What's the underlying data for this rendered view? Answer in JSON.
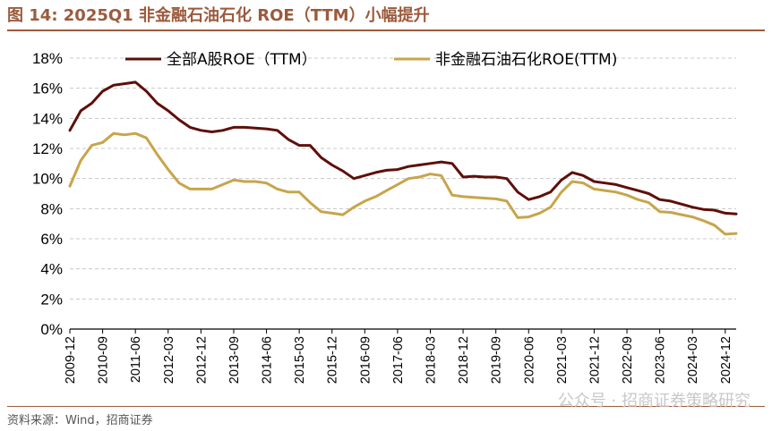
{
  "header": {
    "title": "图 14:  2025Q1 非金融石油石化 ROE（TTM）小幅提升"
  },
  "footer": {
    "source": "资料来源：Wind，招商证券",
    "watermark": "公众号 · 招商证券策略研究"
  },
  "colors": {
    "series_all": "#5e0f0a",
    "series_nonfin": "#c7a54a",
    "grid": "#c8c8c8",
    "accent": "#9c5a3c"
  },
  "chart_data": {
    "type": "line",
    "ylim": [
      0,
      18
    ],
    "y_ticks": [
      "0%",
      "2%",
      "4%",
      "6%",
      "8%",
      "10%",
      "12%",
      "14%",
      "16%",
      "18%"
    ],
    "x_tick_labels": [
      "2009-12",
      "2010-09",
      "2011-06",
      "2012-03",
      "2012-12",
      "2013-09",
      "2014-06",
      "2015-03",
      "2015-12",
      "2016-09",
      "2017-06",
      "2018-03",
      "2018-12",
      "2019-09",
      "2020-06",
      "2021-03",
      "2021-12",
      "2022-09",
      "2023-06",
      "2024-03",
      "2024-12"
    ],
    "x": [
      "2009-12",
      "2010-03",
      "2010-06",
      "2010-09",
      "2010-12",
      "2011-03",
      "2011-06",
      "2011-09",
      "2011-12",
      "2012-03",
      "2012-06",
      "2012-09",
      "2012-12",
      "2013-03",
      "2013-06",
      "2013-09",
      "2013-12",
      "2014-03",
      "2014-06",
      "2014-09",
      "2014-12",
      "2015-03",
      "2015-06",
      "2015-09",
      "2015-12",
      "2016-03",
      "2016-06",
      "2016-09",
      "2016-12",
      "2017-03",
      "2017-06",
      "2017-09",
      "2017-12",
      "2018-03",
      "2018-06",
      "2018-09",
      "2018-12",
      "2019-03",
      "2019-06",
      "2019-09",
      "2019-12",
      "2020-03",
      "2020-06",
      "2020-09",
      "2020-12",
      "2021-03",
      "2021-06",
      "2021-09",
      "2021-12",
      "2022-03",
      "2022-06",
      "2022-09",
      "2022-12",
      "2023-03",
      "2023-06",
      "2023-09",
      "2023-12",
      "2024-03",
      "2024-06",
      "2024-09",
      "2024-12",
      "2025-03"
    ],
    "series": [
      {
        "name": "全部A股ROE（TTM）",
        "color": "#5e0f0a",
        "values": [
          13.2,
          14.5,
          15.0,
          15.8,
          16.2,
          16.3,
          16.4,
          15.8,
          15.0,
          14.5,
          13.9,
          13.4,
          13.2,
          13.1,
          13.2,
          13.4,
          13.4,
          13.35,
          13.3,
          13.2,
          12.6,
          12.2,
          12.2,
          11.4,
          10.9,
          10.5,
          10.0,
          10.2,
          10.4,
          10.55,
          10.6,
          10.8,
          10.9,
          11.0,
          11.1,
          11.0,
          10.1,
          10.15,
          10.1,
          10.1,
          10.0,
          9.1,
          8.6,
          8.8,
          9.1,
          9.9,
          10.4,
          10.2,
          9.8,
          9.7,
          9.6,
          9.4,
          9.2,
          9.0,
          8.6,
          8.5,
          8.3,
          8.1,
          7.95,
          7.9,
          7.7,
          7.65
        ]
      },
      {
        "name": "非金融石油石化ROE(TTM)",
        "color": "#c7a54a",
        "values": [
          9.5,
          11.2,
          12.2,
          12.4,
          13.0,
          12.9,
          13.0,
          12.7,
          11.6,
          10.6,
          9.7,
          9.3,
          9.3,
          9.3,
          9.6,
          9.9,
          9.8,
          9.8,
          9.7,
          9.3,
          9.1,
          9.1,
          8.4,
          7.8,
          7.7,
          7.6,
          8.1,
          8.5,
          8.8,
          9.2,
          9.6,
          10.0,
          10.1,
          10.3,
          10.2,
          8.9,
          8.8,
          8.75,
          8.7,
          8.65,
          8.5,
          7.4,
          7.45,
          7.7,
          8.1,
          9.1,
          9.8,
          9.7,
          9.3,
          9.2,
          9.1,
          8.9,
          8.6,
          8.4,
          7.8,
          7.75,
          7.6,
          7.45,
          7.2,
          6.9,
          6.3,
          6.35
        ]
      }
    ]
  }
}
